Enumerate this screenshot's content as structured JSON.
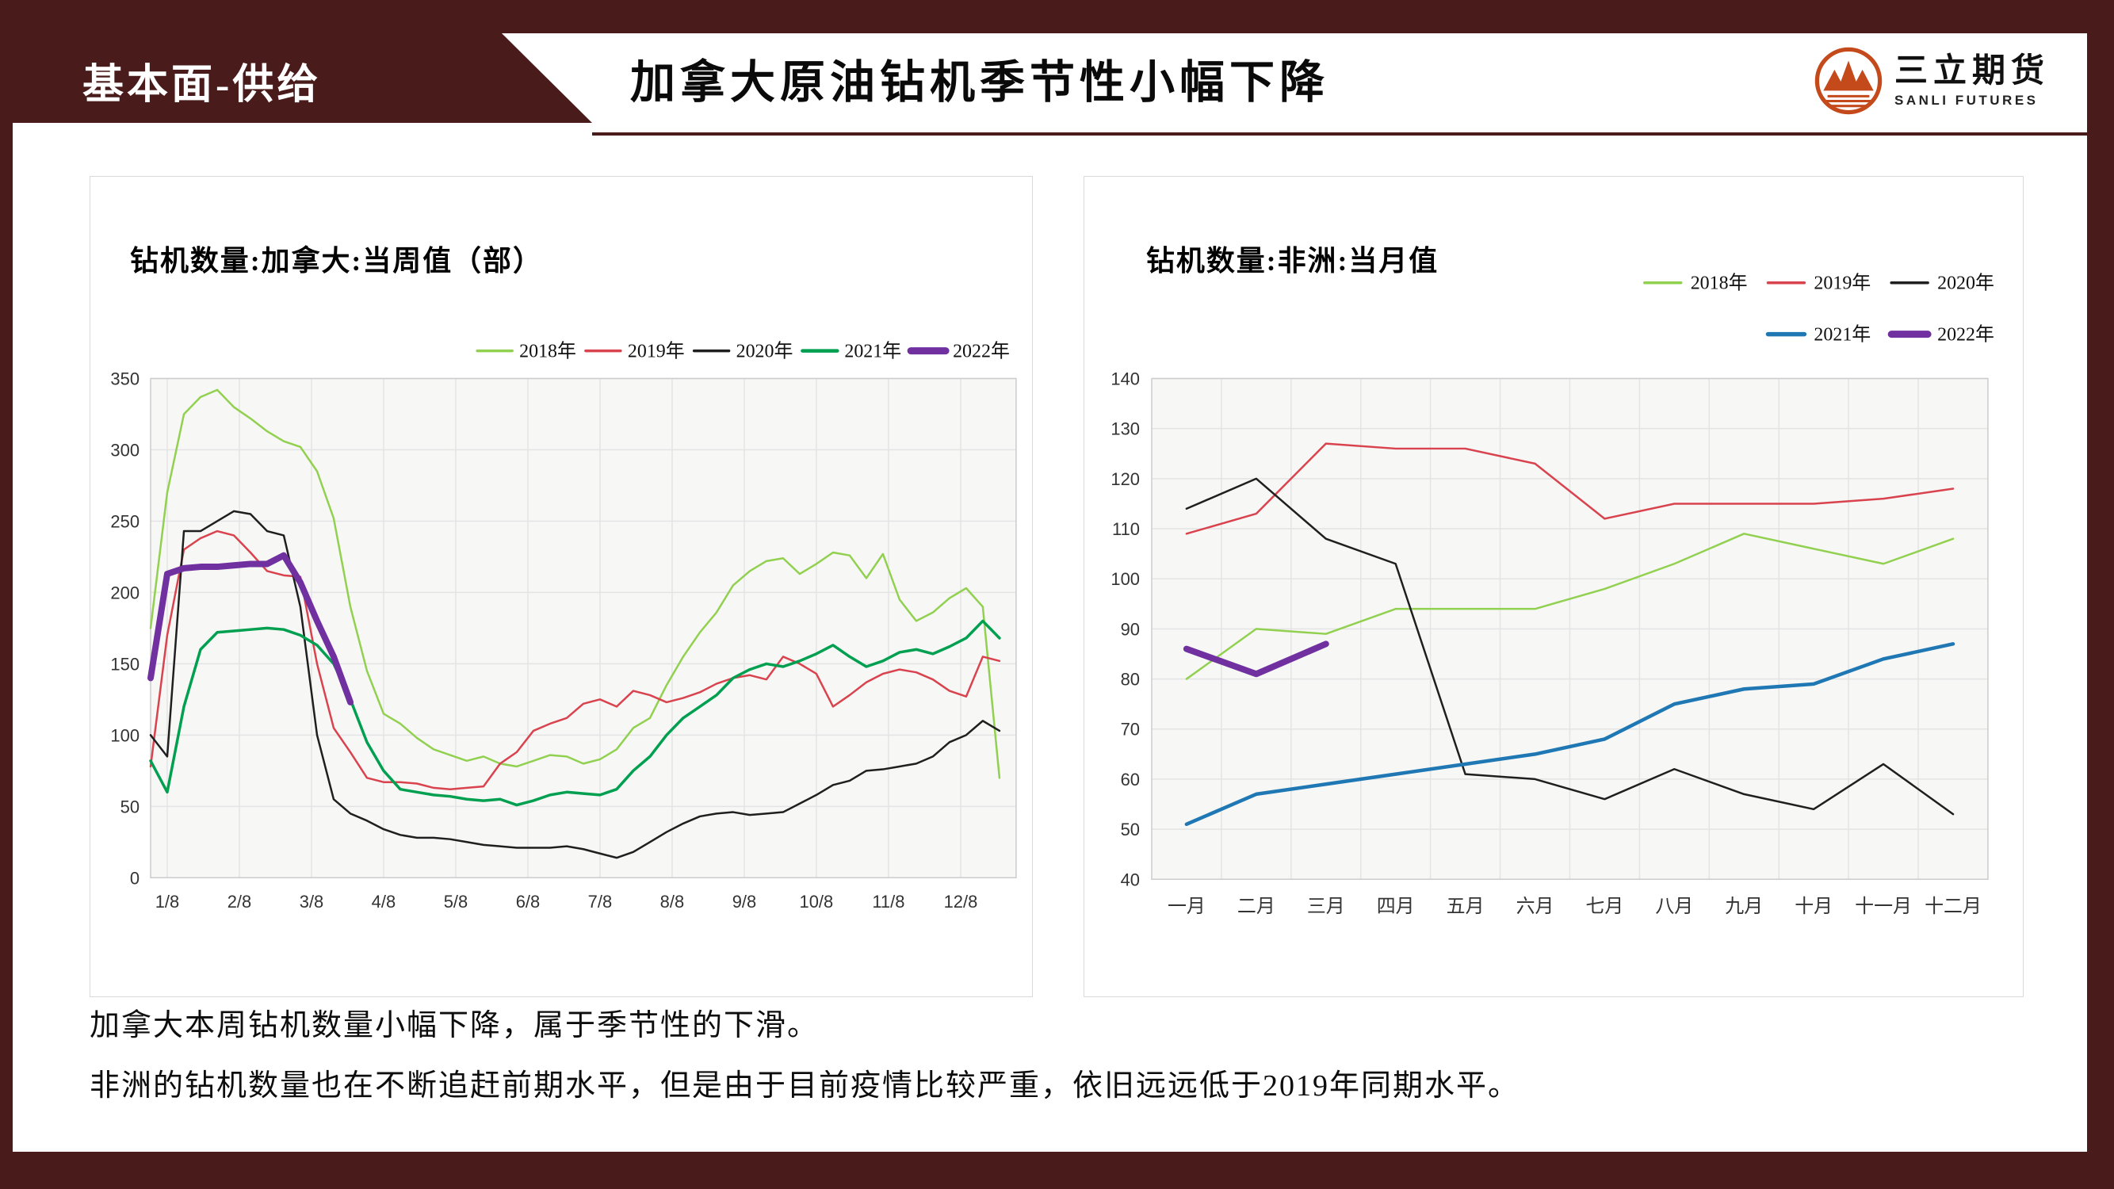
{
  "header": {
    "section_label": "基本面-供给",
    "title": "加拿大原油钻机季节性小幅下降",
    "logo": {
      "name_cn": "三立期货",
      "name_en": "SANLI FUTURES"
    }
  },
  "notes": {
    "line1": "加拿大本周钻机数量小幅下降，属于季节性的下滑。",
    "line2": "非洲的钻机数量也在不断追赶前期水平，但是由于目前疫情比较严重，依旧远远低于2019年同期水平。"
  },
  "colors": {
    "frame_maroon": "#4a1b1b",
    "logo_orange": "#c44a1b",
    "panel_border": "#d9d9d9",
    "plot_background": "#f7f7f6",
    "gridline": "#e4e4e4",
    "series_2018": "#92d050",
    "series_2019": "#d9434e",
    "series_2020": "#1f1f1f",
    "series_2021_left": "#00a050",
    "series_2021_right": "#1f78b4",
    "series_2022": "#7030a0"
  },
  "chart_data": [
    {
      "type": "line",
      "title": "钻机数量:加拿大:当周值（部）",
      "x_tick_labels": [
        "1/8",
        "2/8",
        "3/8",
        "4/8",
        "5/8",
        "6/8",
        "7/8",
        "8/8",
        "9/8",
        "10/8",
        "11/8",
        "12/8"
      ],
      "x_unit": "weekly",
      "ylim": [
        0,
        350
      ],
      "ytick_step": 50,
      "grid": true,
      "legend_position": "top-right-row",
      "series": [
        {
          "name": "2018年",
          "color": "#92d050",
          "width": 2.5,
          "values": [
            175,
            270,
            325,
            337,
            342,
            330,
            322,
            313,
            306,
            302,
            285,
            252,
            190,
            145,
            115,
            108,
            98,
            90,
            86,
            82,
            85,
            80,
            78,
            82,
            86,
            85,
            80,
            83,
            90,
            105,
            112,
            135,
            155,
            172,
            186,
            205,
            215,
            222,
            224,
            213,
            220,
            228,
            226,
            210,
            227,
            195,
            180,
            186,
            196,
            203,
            190,
            70
          ]
        },
        {
          "name": "2019年",
          "color": "#d9434e",
          "width": 2.5,
          "values": [
            78,
            170,
            230,
            238,
            243,
            240,
            228,
            215,
            212,
            211,
            150,
            105,
            88,
            70,
            67,
            67,
            66,
            63,
            62,
            63,
            64,
            80,
            88,
            103,
            108,
            112,
            122,
            125,
            120,
            131,
            128,
            123,
            126,
            130,
            136,
            140,
            142,
            139,
            155,
            150,
            143,
            120,
            128,
            137,
            143,
            146,
            144,
            139,
            131,
            127,
            155,
            152
          ]
        },
        {
          "name": "2020年",
          "color": "#1f1f1f",
          "width": 2.5,
          "values": [
            100,
            85,
            243,
            243,
            250,
            257,
            255,
            243,
            240,
            190,
            100,
            55,
            45,
            40,
            34,
            30,
            28,
            28,
            27,
            25,
            23,
            22,
            21,
            21,
            21,
            22,
            20,
            17,
            14,
            18,
            25,
            32,
            38,
            43,
            45,
            46,
            44,
            45,
            46,
            52,
            58,
            65,
            68,
            75,
            76,
            78,
            80,
            85,
            95,
            100,
            110,
            103
          ]
        },
        {
          "name": "2021年",
          "color": "#00a050",
          "width": 3.5,
          "values": [
            82,
            60,
            120,
            160,
            172,
            173,
            174,
            175,
            174,
            170,
            163,
            150,
            125,
            95,
            75,
            62,
            60,
            58,
            57,
            55,
            54,
            55,
            51,
            54,
            58,
            60,
            59,
            58,
            62,
            75,
            85,
            100,
            112,
            120,
            128,
            140,
            146,
            150,
            148,
            152,
            157,
            163,
            155,
            148,
            152,
            158,
            160,
            157,
            162,
            168,
            180,
            168
          ]
        },
        {
          "name": "2022年",
          "color": "#7030a0",
          "width": 8,
          "values": [
            140,
            213,
            217,
            218,
            218,
            219,
            220,
            220,
            226,
            207,
            180,
            155,
            123
          ]
        }
      ]
    },
    {
      "type": "line",
      "title": "钻机数量:非洲:当月值",
      "x_tick_labels": [
        "一月",
        "二月",
        "三月",
        "四月",
        "五月",
        "六月",
        "七月",
        "八月",
        "九月",
        "十月",
        "十一月",
        "十二月"
      ],
      "x_unit": "monthly",
      "ylim": [
        40,
        140
      ],
      "ytick_step": 10,
      "grid": true,
      "legend_position": "top-right-two-rows",
      "series": [
        {
          "name": "2018年",
          "color": "#92d050",
          "width": 2.5,
          "values": [
            80,
            90,
            89,
            94,
            94,
            94,
            98,
            103,
            109,
            106,
            103,
            108
          ]
        },
        {
          "name": "2019年",
          "color": "#d9434e",
          "width": 2.5,
          "values": [
            109,
            113,
            127,
            126,
            126,
            123,
            112,
            115,
            115,
            115,
            116,
            118
          ]
        },
        {
          "name": "2020年",
          "color": "#1f1f1f",
          "width": 2.5,
          "values": [
            114,
            120,
            108,
            103,
            61,
            60,
            56,
            62,
            57,
            54,
            63,
            53
          ]
        },
        {
          "name": "2021年",
          "color": "#1f78b4",
          "width": 4.5,
          "values": [
            51,
            57,
            59,
            61,
            63,
            65,
            68,
            75,
            78,
            79,
            84,
            87
          ]
        },
        {
          "name": "2022年",
          "color": "#7030a0",
          "width": 8,
          "values": [
            86,
            81,
            87
          ]
        }
      ]
    }
  ]
}
